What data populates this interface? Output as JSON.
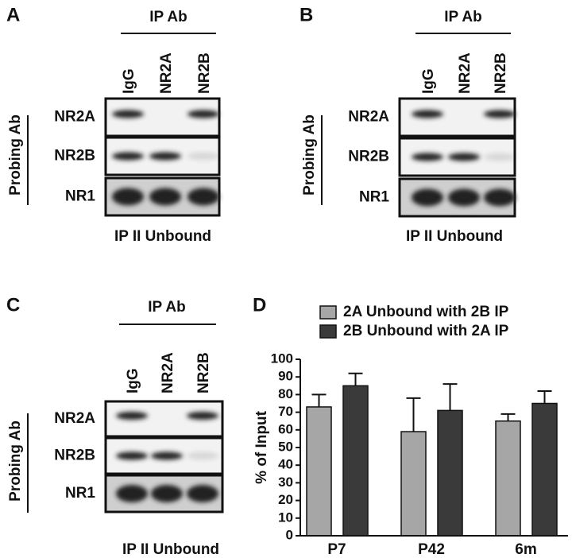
{
  "panels": [
    {
      "letter": "A",
      "header": "IP Ab",
      "lanes": [
        "IgG",
        "NR2A",
        "NR2B"
      ],
      "probes": [
        "NR2A",
        "NR2B",
        "NR1"
      ],
      "side_label": "Probing Ab",
      "footer": "IP II Unbound"
    },
    {
      "letter": "B",
      "header": "IP Ab",
      "lanes": [
        "IgG",
        "NR2A",
        "NR2B"
      ],
      "probes": [
        "NR2A",
        "NR2B",
        "NR1"
      ],
      "side_label": "Probing Ab",
      "footer": "IP II Unbound"
    },
    {
      "letter": "C",
      "header": "IP Ab",
      "lanes": [
        "IgG",
        "NR2A",
        "NR2B"
      ],
      "probes": [
        "NR2A",
        "NR2B",
        "NR1"
      ],
      "side_label": "Probing Ab",
      "footer": "IP II Unbound"
    }
  ],
  "chart_data": {
    "type": "bar",
    "panel_label": "D",
    "ylabel": "% of Input",
    "categories": [
      "P7",
      "P42",
      "6m"
    ],
    "series": [
      {
        "name": "2A Unbound with 2B IP",
        "color": "#a6a6a6",
        "values": [
          73,
          59,
          65
        ],
        "errors": [
          7,
          19,
          4
        ]
      },
      {
        "name": "2B Unbound with 2A IP",
        "color": "#3a3a3a",
        "values": [
          85,
          71,
          75
        ],
        "errors": [
          7,
          15,
          7
        ]
      }
    ],
    "ylim": [
      0,
      100
    ],
    "yticks": [
      0,
      10,
      20,
      30,
      40,
      50,
      60,
      70,
      80,
      90,
      100
    ]
  }
}
